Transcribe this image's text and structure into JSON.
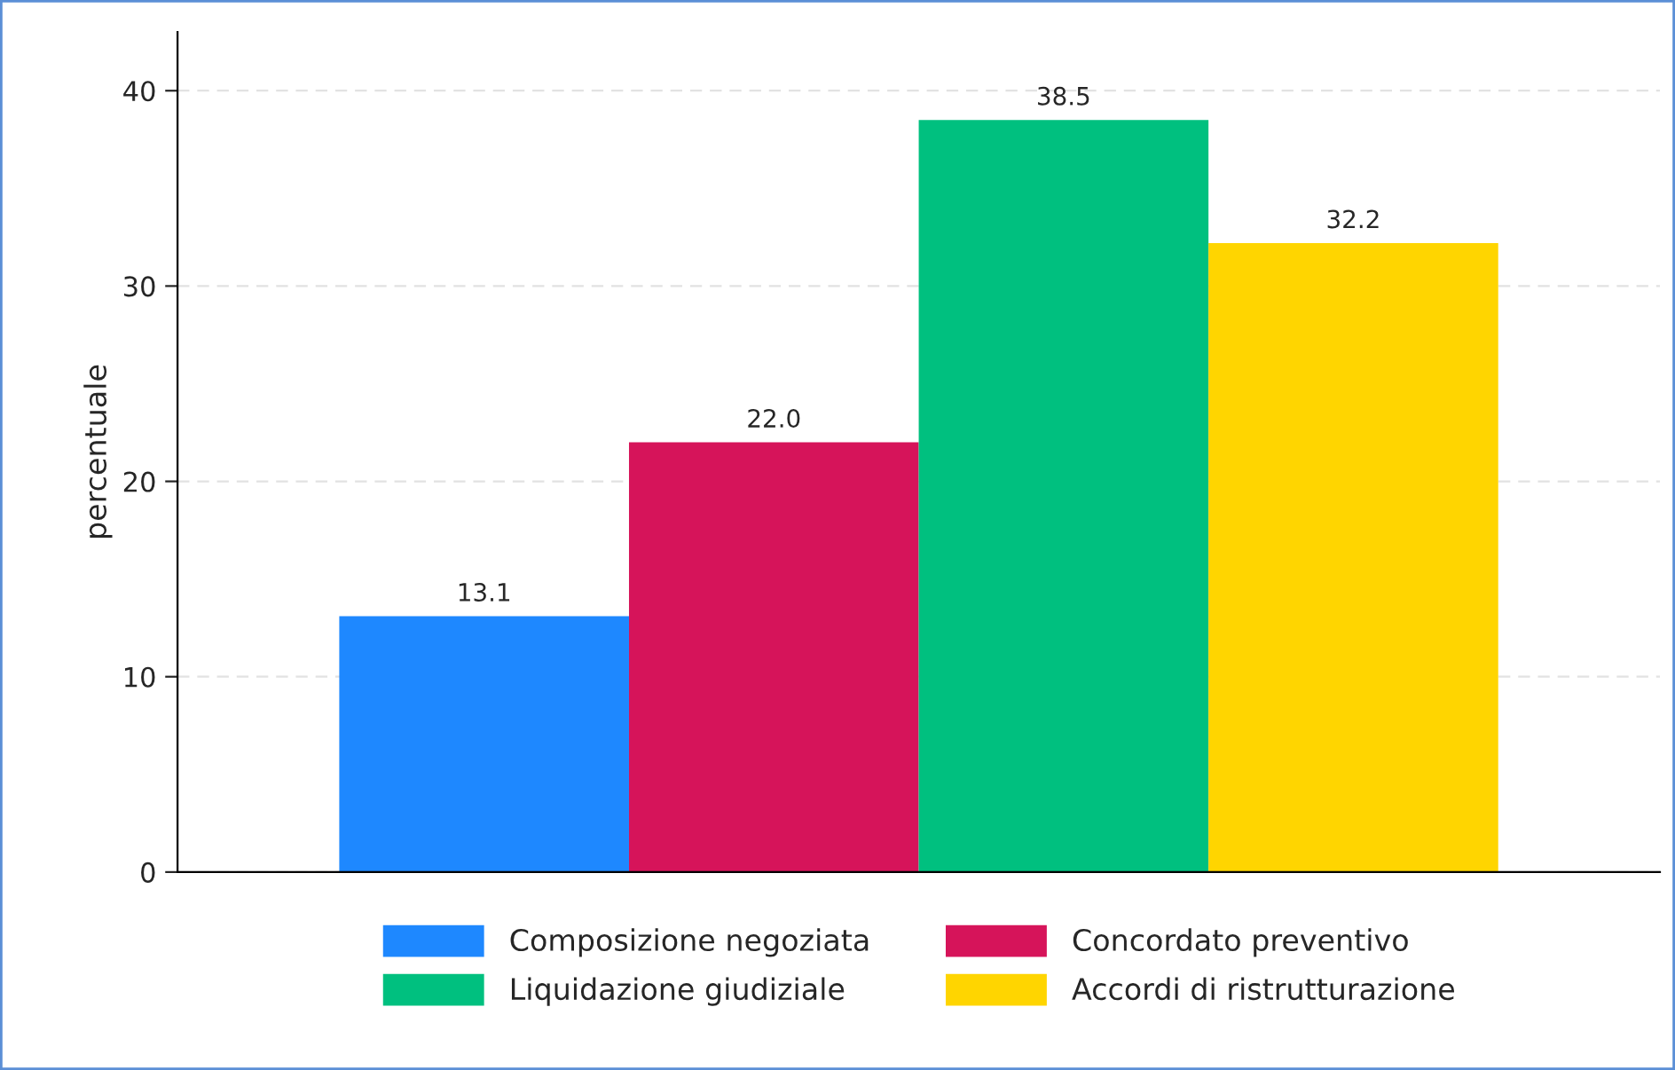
{
  "chart_data": {
    "type": "bar",
    "ylabel": "percentuale",
    "categories": [
      null
    ],
    "series": [
      {
        "name": "Composizione negoziata",
        "color": "#1e88ff",
        "values": [
          13.1
        ],
        "value_labels": [
          "13.1"
        ]
      },
      {
        "name": "Concordato preventivo",
        "color": "#d6145a",
        "values": [
          22.0
        ],
        "value_labels": [
          "22.0"
        ]
      },
      {
        "name": "Liquidazione giudiziale",
        "color": "#00c07f",
        "values": [
          38.5
        ],
        "value_labels": [
          "38.5"
        ]
      },
      {
        "name": "Accordi di ristrutturazione",
        "color": "#ffd500",
        "values": [
          32.2
        ],
        "value_labels": [
          "32.2"
        ]
      }
    ],
    "ylim": [
      0,
      43
    ],
    "yticks": [
      0,
      10,
      20,
      30,
      40
    ],
    "grid": "y",
    "legend": "bottom"
  }
}
